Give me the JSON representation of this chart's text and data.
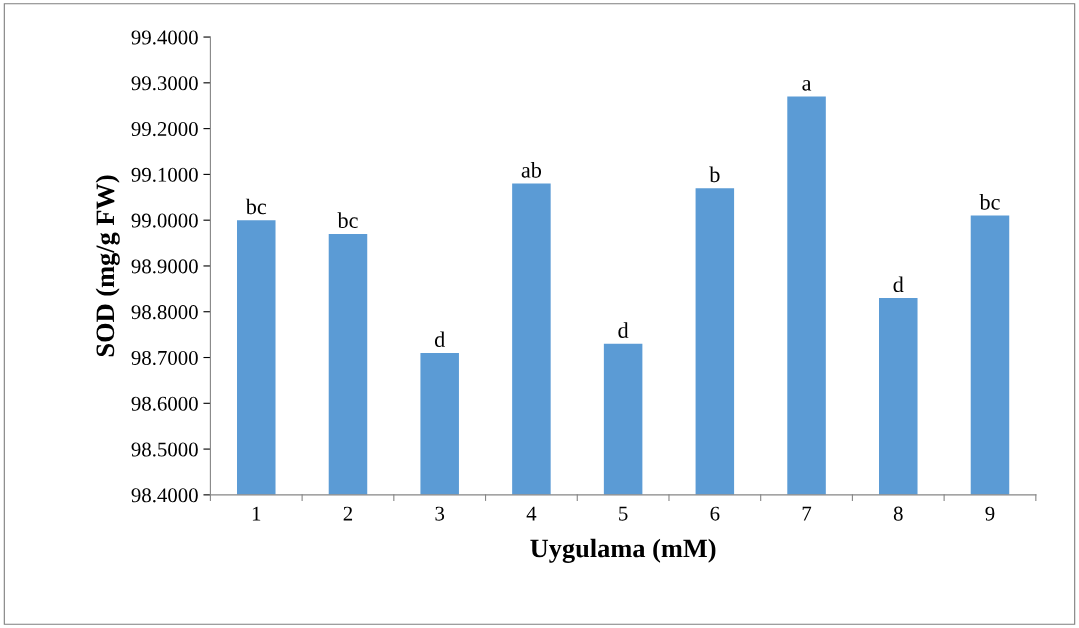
{
  "chart_data": {
    "type": "bar",
    "xlabel": "Uygulama (mM)",
    "ylabel": "SOD (mg/g FW)",
    "categories": [
      "1",
      "2",
      "3",
      "4",
      "5",
      "6",
      "7",
      "8",
      "9"
    ],
    "values": [
      99.0,
      98.97,
      98.71,
      99.08,
      98.73,
      99.07,
      99.27,
      98.83,
      99.01
    ],
    "color": "#5b9bd5",
    "ylim": [
      98.4,
      99.4
    ],
    "yticks": [
      {
        "value": 98.4,
        "label": "98.4000"
      },
      {
        "value": 98.5,
        "label": "98.5000"
      },
      {
        "value": 98.6,
        "label": "98.6000"
      },
      {
        "value": 98.7,
        "label": "98.7000"
      },
      {
        "value": 98.8,
        "label": "98.8000"
      },
      {
        "value": 98.9,
        "label": "98.9000"
      },
      {
        "value": 99.0,
        "label": "99.0000"
      },
      {
        "value": 99.1,
        "label": "99.1000"
      },
      {
        "value": 99.2,
        "label": "99.2000"
      },
      {
        "value": 99.3,
        "label": "99.3000"
      },
      {
        "value": 99.4,
        "label": "99.4000"
      }
    ],
    "annotations": [
      {
        "text": "bc",
        "x": "1",
        "y": 99.0
      },
      {
        "text": "bc",
        "x": "2",
        "y": 98.97
      },
      {
        "text": "d",
        "x": "3",
        "y": 98.71
      },
      {
        "text": "ab",
        "x": "4",
        "y": 99.08
      },
      {
        "text": "d",
        "x": "5",
        "y": 98.73
      },
      {
        "text": "b",
        "x": "6",
        "y": 99.07
      },
      {
        "text": "a",
        "x": "7",
        "y": 99.27
      },
      {
        "text": "d",
        "x": "8",
        "y": 98.83
      },
      {
        "text": "bc",
        "x": "9",
        "y": 99.01
      }
    ],
    "grid": false
  }
}
